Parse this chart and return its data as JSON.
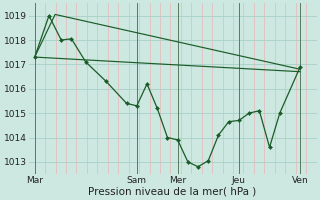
{
  "bg_color": "#cce8e0",
  "grid_color": "#a8cfc8",
  "minor_grid_color": "#e8b8b8",
  "line_color": "#1a5c28",
  "marker_color": "#1a5c28",
  "xlabel": "Pression niveau de la mer( hPa )",
  "xlabel_fontsize": 7.5,
  "ylim": [
    1012.5,
    1019.5
  ],
  "yticks": [
    1013,
    1014,
    1015,
    1016,
    1017,
    1018,
    1019
  ],
  "xtick_labels": [
    "Mar",
    "Sam",
    "Mer",
    "Jeu",
    "Ven"
  ],
  "xtick_positions": [
    0,
    5,
    7,
    10,
    13
  ],
  "vline_color": "#5a7a60",
  "series1_x": [
    0,
    0.7,
    1.3,
    1.8,
    2.5,
    3.5,
    4.5,
    5.0,
    5.5,
    6.0,
    6.5,
    7.0,
    7.5,
    8.0,
    8.5,
    9.0,
    9.5,
    10.0,
    10.5,
    11.0,
    11.5,
    12.0,
    13.0
  ],
  "series1_y": [
    1017.3,
    1019.0,
    1018.0,
    1018.05,
    1017.1,
    1016.3,
    1015.4,
    1015.3,
    1016.2,
    1015.2,
    1014.0,
    1013.9,
    1013.0,
    1012.8,
    1013.05,
    1014.1,
    1014.65,
    1014.7,
    1015.0,
    1015.1,
    1013.6,
    1015.0,
    1016.9
  ],
  "series2_x": [
    0,
    13
  ],
  "series2_y": [
    1017.3,
    1016.7
  ],
  "series3_x": [
    0,
    1.0,
    13.0
  ],
  "series3_y": [
    1017.3,
    1019.05,
    1016.8
  ],
  "xlim": [
    -0.3,
    13.8
  ],
  "minor_xticks_count": 28
}
